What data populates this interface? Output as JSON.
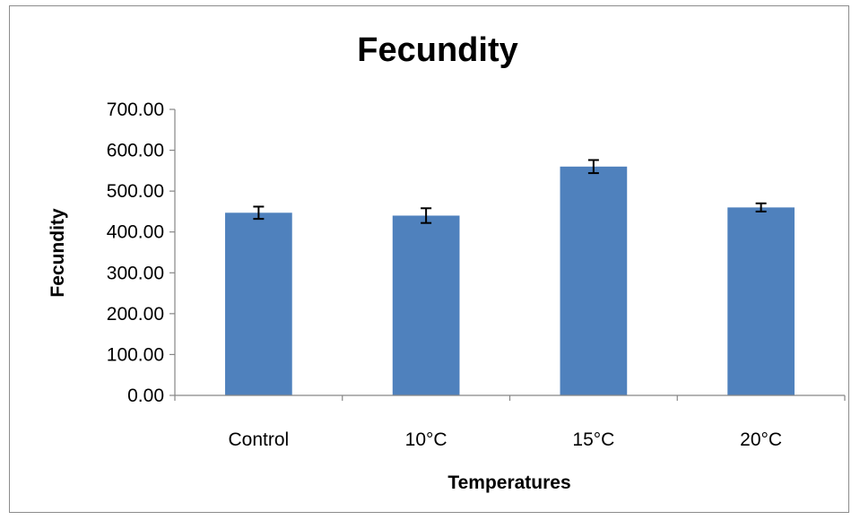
{
  "chart_data": {
    "type": "bar",
    "title": "Fecundity",
    "xlabel": "Temperatures",
    "ylabel": "Fecundity",
    "categories": [
      "Control",
      "10°C",
      "15°C",
      "20°C"
    ],
    "values": [
      447,
      440,
      560,
      460
    ],
    "errors": [
      15,
      18,
      16,
      10
    ],
    "ylim": [
      0,
      700
    ],
    "yticks": [
      "0.00",
      "100.00",
      "200.00",
      "300.00",
      "400.00",
      "500.00",
      "600.00",
      "700.00"
    ],
    "grid": false,
    "legend": "none",
    "bar_color": "#4f81bd",
    "error_color": "#000000"
  }
}
